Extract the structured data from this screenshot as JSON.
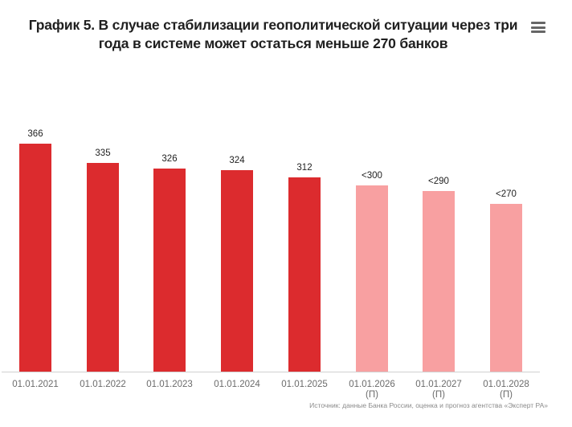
{
  "title": "График 5. В случае стабилизации геополитической ситуации через три года в системе может остаться меньше 270 банков",
  "menu": {
    "icon": "hamburger-menu-icon"
  },
  "source": "Источник: данные Банка России, оценка и прогноз агентства «Эксперт РА»",
  "colors": {
    "actual": "#dc2b2e",
    "forecast": "#f8a0a1",
    "axis": "#d0d0d0"
  },
  "chart_data": {
    "type": "bar",
    "title": "График 5. В случае стабилизации геополитической ситуации через три года в системе может остаться меньше 270 банков",
    "xlabel": "",
    "ylabel": "",
    "categories": [
      "01.01.2021",
      "01.01.2022",
      "01.01.2023",
      "01.01.2024",
      "01.01.2025",
      "01.01.2026 (П)",
      "01.01.2027 (П)",
      "01.01.2028 (П)"
    ],
    "values": [
      366,
      335,
      326,
      324,
      312,
      300,
      290,
      270
    ],
    "data_labels": [
      "366",
      "335",
      "326",
      "324",
      "312",
      "<300",
      "<290",
      "<270"
    ],
    "forecast": [
      false,
      false,
      false,
      false,
      false,
      true,
      true,
      true
    ],
    "grid": false,
    "legend": null,
    "ylim": [
      0,
      366
    ]
  },
  "bars": [
    {
      "label": "366",
      "tick": "01.01.2021",
      "sub": "",
      "value": 366,
      "forecast": false
    },
    {
      "label": "335",
      "tick": "01.01.2022",
      "sub": "",
      "value": 335,
      "forecast": false
    },
    {
      "label": "326",
      "tick": "01.01.2023",
      "sub": "",
      "value": 326,
      "forecast": false
    },
    {
      "label": "324",
      "tick": "01.01.2024",
      "sub": "",
      "value": 324,
      "forecast": false
    },
    {
      "label": "312",
      "tick": "01.01.2025",
      "sub": "",
      "value": 312,
      "forecast": false
    },
    {
      "label": "<300",
      "tick": "01.01.2026",
      "sub": "(П)",
      "value": 300,
      "forecast": true
    },
    {
      "label": "<290",
      "tick": "01.01.2027",
      "sub": "(П)",
      "value": 290,
      "forecast": true
    },
    {
      "label": "<270",
      "tick": "01.01.2028",
      "sub": "(П)",
      "value": 270,
      "forecast": true
    }
  ]
}
